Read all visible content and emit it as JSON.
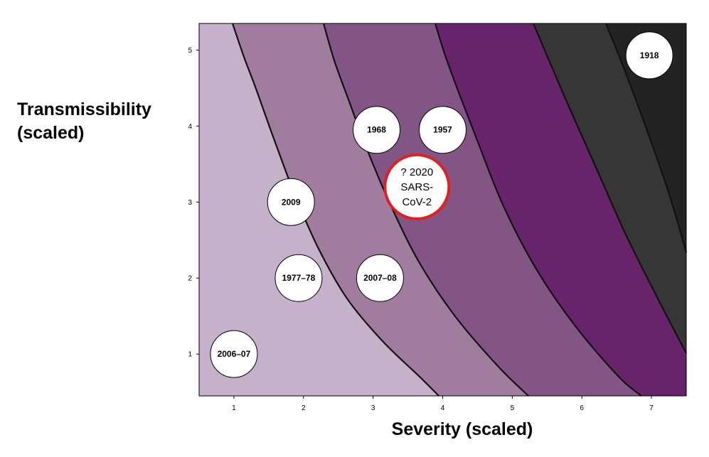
{
  "chart_data": {
    "type": "scatter",
    "xlabel": "Severity (scaled)",
    "ylabel_lines": [
      "Transmissibility",
      "(scaled)"
    ],
    "xlim": [
      0.5,
      7.5
    ],
    "ylim": [
      0.45,
      5.35
    ],
    "xticks": [
      1,
      2,
      3,
      4,
      5,
      6,
      7
    ],
    "yticks": [
      1,
      2,
      3,
      4,
      5
    ],
    "grid": false,
    "legend": "none",
    "category_bands": {
      "colors": [
        "#c5b1c9",
        "#a07d9f",
        "#835584",
        "#68246a",
        "#363636",
        "#232323"
      ],
      "boundary_color": "#111111"
    },
    "points": [
      {
        "label": "2006–07",
        "x": 1.0,
        "y": 1.0
      },
      {
        "label": "1977–78",
        "x": 1.93,
        "y": 2.0
      },
      {
        "label": "2007–08",
        "x": 3.1,
        "y": 2.0
      },
      {
        "label": "2009",
        "x": 1.82,
        "y": 3.0
      },
      {
        "label": "1968",
        "x": 3.05,
        "y": 3.95
      },
      {
        "label": "1957",
        "x": 4.0,
        "y": 3.95
      },
      {
        "label": "1918",
        "x": 6.97,
        "y": 4.93
      }
    ],
    "highlight": {
      "lines": [
        "? 2020",
        "SARS-",
        "CoV-2"
      ],
      "x": 3.63,
      "y": 3.2,
      "ring_color": "#e0201e"
    }
  }
}
